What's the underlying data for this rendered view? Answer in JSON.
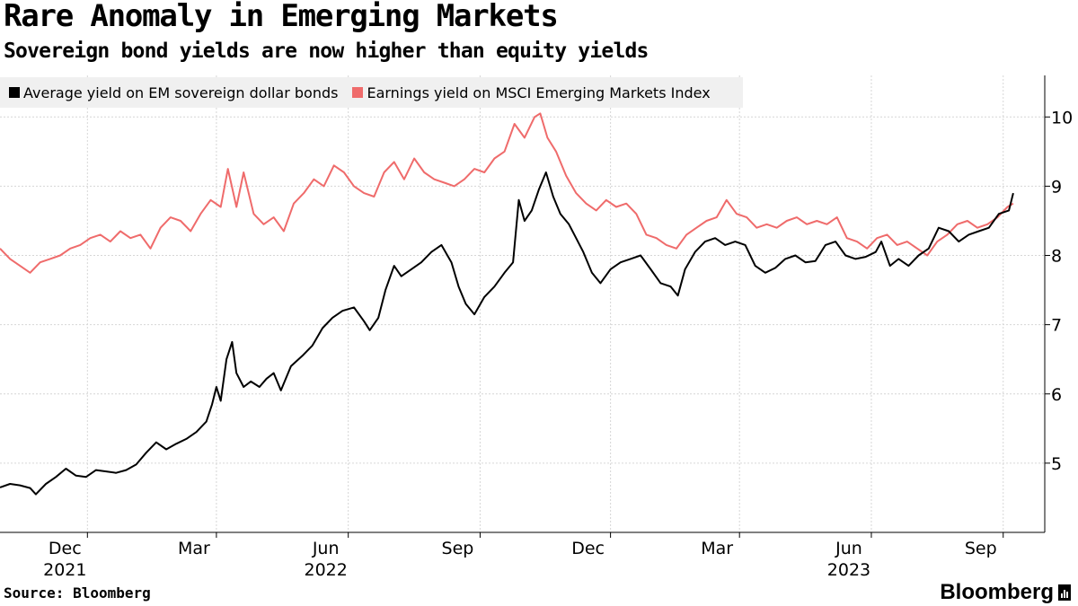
{
  "header": {
    "title": "Rare Anomaly in Emerging Markets",
    "subtitle": "Sovereign bond yields are now higher than equity yields"
  },
  "footer": {
    "source": "Source: Bloomberg",
    "brand": "Bloomberg"
  },
  "colors": {
    "bonds": "#000000",
    "earnings": "#ef6b6b",
    "grid": "#cccccc",
    "legend_bg": "#f0f0f0"
  },
  "chart_data": {
    "type": "line",
    "title": "Rare Anomaly in Emerging Markets",
    "subtitle": "Sovereign bond yields are now higher than equity yields",
    "xlim": [
      "2021-10-01",
      "2023-09-30"
    ],
    "ylim": [
      4.0,
      10.6
    ],
    "grid": true,
    "legend": "top-left",
    "y_axis_side": "right",
    "x_ticks": [
      {
        "date": "2021-12-01",
        "label": "Dec",
        "year": "2021"
      },
      {
        "date": "2022-03-01",
        "label": "Mar",
        "year": ""
      },
      {
        "date": "2022-06-01",
        "label": "Jun",
        "year": "2022"
      },
      {
        "date": "2022-09-01",
        "label": "Sep",
        "year": ""
      },
      {
        "date": "2022-12-01",
        "label": "Dec",
        "year": ""
      },
      {
        "date": "2023-03-01",
        "label": "Mar",
        "year": ""
      },
      {
        "date": "2023-06-01",
        "label": "Jun",
        "year": "2023"
      },
      {
        "date": "2023-09-01",
        "label": "Sep",
        "year": ""
      }
    ],
    "y_ticks": [
      5,
      6,
      7,
      8,
      9,
      10
    ],
    "series": [
      {
        "name": "Average yield on EM sovereign dollar bonds",
        "color": "#000000",
        "points": [
          [
            "2021-10-01",
            4.65
          ],
          [
            "2021-10-08",
            4.7
          ],
          [
            "2021-10-15",
            4.68
          ],
          [
            "2021-10-22",
            4.64
          ],
          [
            "2021-10-26",
            4.55
          ],
          [
            "2021-11-02",
            4.7
          ],
          [
            "2021-11-09",
            4.8
          ],
          [
            "2021-11-16",
            4.92
          ],
          [
            "2021-11-23",
            4.82
          ],
          [
            "2021-11-30",
            4.8
          ],
          [
            "2021-12-07",
            4.9
          ],
          [
            "2021-12-14",
            4.88
          ],
          [
            "2021-12-21",
            4.86
          ],
          [
            "2021-12-28",
            4.9
          ],
          [
            "2022-01-04",
            4.98
          ],
          [
            "2022-01-11",
            5.15
          ],
          [
            "2022-01-18",
            5.3
          ],
          [
            "2022-01-25",
            5.2
          ],
          [
            "2022-02-01",
            5.28
          ],
          [
            "2022-02-08",
            5.35
          ],
          [
            "2022-02-15",
            5.45
          ],
          [
            "2022-02-22",
            5.6
          ],
          [
            "2022-02-26",
            5.85
          ],
          [
            "2022-03-01",
            6.1
          ],
          [
            "2022-03-04",
            5.9
          ],
          [
            "2022-03-08",
            6.5
          ],
          [
            "2022-03-12",
            6.75
          ],
          [
            "2022-03-15",
            6.3
          ],
          [
            "2022-03-20",
            6.1
          ],
          [
            "2022-03-25",
            6.18
          ],
          [
            "2022-03-31",
            6.1
          ],
          [
            "2022-04-05",
            6.22
          ],
          [
            "2022-04-10",
            6.3
          ],
          [
            "2022-04-15",
            6.05
          ],
          [
            "2022-04-22",
            6.4
          ],
          [
            "2022-04-30",
            6.55
          ],
          [
            "2022-05-07",
            6.7
          ],
          [
            "2022-05-14",
            6.95
          ],
          [
            "2022-05-21",
            7.1
          ],
          [
            "2022-05-28",
            7.2
          ],
          [
            "2022-06-05",
            7.25
          ],
          [
            "2022-06-12",
            7.05
          ],
          [
            "2022-06-16",
            6.92
          ],
          [
            "2022-06-22",
            7.1
          ],
          [
            "2022-06-27",
            7.5
          ],
          [
            "2022-07-03",
            7.85
          ],
          [
            "2022-07-08",
            7.7
          ],
          [
            "2022-07-15",
            7.8
          ],
          [
            "2022-07-22",
            7.9
          ],
          [
            "2022-07-29",
            8.05
          ],
          [
            "2022-08-05",
            8.15
          ],
          [
            "2022-08-12",
            7.9
          ],
          [
            "2022-08-17",
            7.55
          ],
          [
            "2022-08-22",
            7.3
          ],
          [
            "2022-08-28",
            7.15
          ],
          [
            "2022-09-04",
            7.4
          ],
          [
            "2022-09-11",
            7.55
          ],
          [
            "2022-09-18",
            7.75
          ],
          [
            "2022-09-24",
            7.9
          ],
          [
            "2022-09-28",
            8.8
          ],
          [
            "2022-10-02",
            8.5
          ],
          [
            "2022-10-07",
            8.65
          ],
          [
            "2022-10-12",
            8.95
          ],
          [
            "2022-10-17",
            9.2
          ],
          [
            "2022-10-22",
            8.85
          ],
          [
            "2022-10-27",
            8.6
          ],
          [
            "2022-11-02",
            8.45
          ],
          [
            "2022-11-07",
            8.25
          ],
          [
            "2022-11-12",
            8.05
          ],
          [
            "2022-11-18",
            7.75
          ],
          [
            "2022-11-24",
            7.6
          ],
          [
            "2022-12-01",
            7.8
          ],
          [
            "2022-12-08",
            7.9
          ],
          [
            "2022-12-15",
            7.95
          ],
          [
            "2022-12-22",
            8.0
          ],
          [
            "2022-12-29",
            7.8
          ],
          [
            "2023-01-05",
            7.6
          ],
          [
            "2023-01-12",
            7.55
          ],
          [
            "2023-01-17",
            7.42
          ],
          [
            "2023-01-22",
            7.8
          ],
          [
            "2023-01-29",
            8.05
          ],
          [
            "2023-02-05",
            8.2
          ],
          [
            "2023-02-12",
            8.25
          ],
          [
            "2023-02-19",
            8.15
          ],
          [
            "2023-02-26",
            8.2
          ],
          [
            "2023-03-05",
            8.15
          ],
          [
            "2023-03-12",
            7.85
          ],
          [
            "2023-03-19",
            7.75
          ],
          [
            "2023-03-26",
            7.82
          ],
          [
            "2023-04-02",
            7.95
          ],
          [
            "2023-04-09",
            8.0
          ],
          [
            "2023-04-16",
            7.9
          ],
          [
            "2023-04-23",
            7.92
          ],
          [
            "2023-04-30",
            8.15
          ],
          [
            "2023-05-07",
            8.2
          ],
          [
            "2023-05-14",
            8.0
          ],
          [
            "2023-05-21",
            7.95
          ],
          [
            "2023-05-28",
            7.98
          ],
          [
            "2023-06-04",
            8.05
          ],
          [
            "2023-06-08",
            8.2
          ],
          [
            "2023-06-14",
            7.85
          ],
          [
            "2023-06-20",
            7.95
          ],
          [
            "2023-06-27",
            7.85
          ],
          [
            "2023-07-04",
            8.0
          ],
          [
            "2023-07-11",
            8.1
          ],
          [
            "2023-07-18",
            8.4
          ],
          [
            "2023-07-25",
            8.35
          ],
          [
            "2023-08-01",
            8.2
          ],
          [
            "2023-08-08",
            8.3
          ],
          [
            "2023-08-15",
            8.35
          ],
          [
            "2023-08-22",
            8.4
          ],
          [
            "2023-08-29",
            8.6
          ],
          [
            "2023-09-05",
            8.65
          ],
          [
            "2023-09-08",
            8.9
          ]
        ]
      },
      {
        "name": "Earnings yield on MSCI Emerging Markets Index",
        "color": "#ef6b6b",
        "points": [
          [
            "2021-10-01",
            8.1
          ],
          [
            "2021-10-08",
            7.95
          ],
          [
            "2021-10-15",
            7.85
          ],
          [
            "2021-10-22",
            7.75
          ],
          [
            "2021-10-29",
            7.9
          ],
          [
            "2021-11-05",
            7.95
          ],
          [
            "2021-11-12",
            8.0
          ],
          [
            "2021-11-19",
            8.1
          ],
          [
            "2021-11-26",
            8.15
          ],
          [
            "2021-12-03",
            8.25
          ],
          [
            "2021-12-10",
            8.3
          ],
          [
            "2021-12-17",
            8.2
          ],
          [
            "2021-12-24",
            8.35
          ],
          [
            "2021-12-31",
            8.25
          ],
          [
            "2022-01-07",
            8.3
          ],
          [
            "2022-01-14",
            8.1
          ],
          [
            "2022-01-21",
            8.4
          ],
          [
            "2022-01-28",
            8.55
          ],
          [
            "2022-02-04",
            8.5
          ],
          [
            "2022-02-11",
            8.35
          ],
          [
            "2022-02-18",
            8.6
          ],
          [
            "2022-02-25",
            8.8
          ],
          [
            "2022-03-04",
            8.7
          ],
          [
            "2022-03-09",
            9.25
          ],
          [
            "2022-03-15",
            8.7
          ],
          [
            "2022-03-20",
            9.2
          ],
          [
            "2022-03-27",
            8.6
          ],
          [
            "2022-04-03",
            8.45
          ],
          [
            "2022-04-10",
            8.55
          ],
          [
            "2022-04-17",
            8.35
          ],
          [
            "2022-04-24",
            8.75
          ],
          [
            "2022-05-01",
            8.9
          ],
          [
            "2022-05-08",
            9.1
          ],
          [
            "2022-05-15",
            9.0
          ],
          [
            "2022-05-22",
            9.3
          ],
          [
            "2022-05-29",
            9.2
          ],
          [
            "2022-06-05",
            9.0
          ],
          [
            "2022-06-12",
            8.9
          ],
          [
            "2022-06-19",
            8.85
          ],
          [
            "2022-06-26",
            9.2
          ],
          [
            "2022-07-03",
            9.35
          ],
          [
            "2022-07-10",
            9.1
          ],
          [
            "2022-07-17",
            9.4
          ],
          [
            "2022-07-24",
            9.2
          ],
          [
            "2022-07-31",
            9.1
          ],
          [
            "2022-08-07",
            9.05
          ],
          [
            "2022-08-14",
            9.0
          ],
          [
            "2022-08-21",
            9.1
          ],
          [
            "2022-08-28",
            9.25
          ],
          [
            "2022-09-04",
            9.2
          ],
          [
            "2022-09-11",
            9.4
          ],
          [
            "2022-09-18",
            9.5
          ],
          [
            "2022-09-25",
            9.9
          ],
          [
            "2022-10-02",
            9.7
          ],
          [
            "2022-10-09",
            10.0
          ],
          [
            "2022-10-13",
            10.05
          ],
          [
            "2022-10-18",
            9.7
          ],
          [
            "2022-10-24",
            9.5
          ],
          [
            "2022-10-31",
            9.15
          ],
          [
            "2022-11-07",
            8.9
          ],
          [
            "2022-11-14",
            8.75
          ],
          [
            "2022-11-21",
            8.65
          ],
          [
            "2022-11-28",
            8.8
          ],
          [
            "2022-12-05",
            8.7
          ],
          [
            "2022-12-12",
            8.75
          ],
          [
            "2022-12-19",
            8.6
          ],
          [
            "2022-12-26",
            8.3
          ],
          [
            "2023-01-02",
            8.25
          ],
          [
            "2023-01-09",
            8.15
          ],
          [
            "2023-01-16",
            8.1
          ],
          [
            "2023-01-23",
            8.3
          ],
          [
            "2023-01-30",
            8.4
          ],
          [
            "2023-02-06",
            8.5
          ],
          [
            "2023-02-13",
            8.55
          ],
          [
            "2023-02-20",
            8.8
          ],
          [
            "2023-02-27",
            8.6
          ],
          [
            "2023-03-06",
            8.55
          ],
          [
            "2023-03-13",
            8.4
          ],
          [
            "2023-03-20",
            8.45
          ],
          [
            "2023-03-27",
            8.4
          ],
          [
            "2023-04-03",
            8.5
          ],
          [
            "2023-04-10",
            8.55
          ],
          [
            "2023-04-17",
            8.45
          ],
          [
            "2023-04-24",
            8.5
          ],
          [
            "2023-05-01",
            8.45
          ],
          [
            "2023-05-08",
            8.55
          ],
          [
            "2023-05-15",
            8.25
          ],
          [
            "2023-05-22",
            8.2
          ],
          [
            "2023-05-29",
            8.1
          ],
          [
            "2023-06-05",
            8.25
          ],
          [
            "2023-06-12",
            8.3
          ],
          [
            "2023-06-19",
            8.15
          ],
          [
            "2023-06-26",
            8.2
          ],
          [
            "2023-07-03",
            8.1
          ],
          [
            "2023-07-10",
            8.0
          ],
          [
            "2023-07-17",
            8.2
          ],
          [
            "2023-07-24",
            8.3
          ],
          [
            "2023-07-31",
            8.45
          ],
          [
            "2023-08-07",
            8.5
          ],
          [
            "2023-08-14",
            8.4
          ],
          [
            "2023-08-21",
            8.45
          ],
          [
            "2023-08-28",
            8.55
          ],
          [
            "2023-09-04",
            8.7
          ],
          [
            "2023-09-08",
            8.75
          ]
        ]
      }
    ]
  }
}
